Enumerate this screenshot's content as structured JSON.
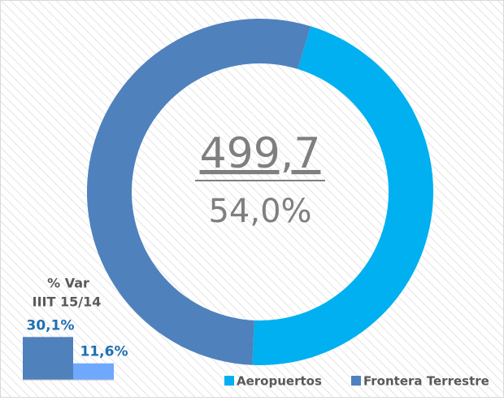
{
  "chart_data": [
    {
      "type": "donut",
      "categories": [
        "Aeropuertos",
        "Frontera Terrestre"
      ],
      "values": [
        46.0,
        54.0
      ],
      "colors": [
        "#00b0f0",
        "#4f81bd"
      ],
      "center_value": "499,7",
      "center_share": "54,0%",
      "legend": "bottom-right"
    },
    {
      "type": "bar",
      "title": [
        "% Var",
        "IIIT 15/14"
      ],
      "values": [
        30.1,
        11.6
      ],
      "value_labels": [
        "30,1%",
        "11,6%"
      ],
      "colors": [
        "#4f81bd",
        "#6fa8ff"
      ]
    }
  ]
}
